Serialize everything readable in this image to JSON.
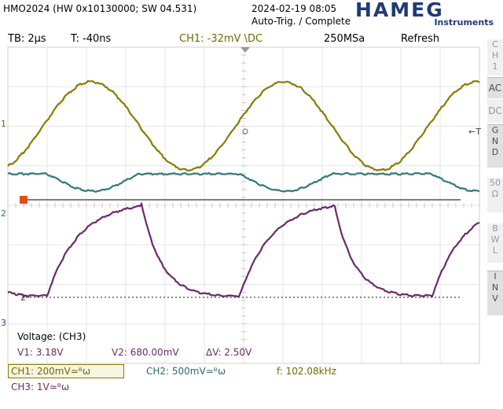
{
  "header": {
    "model": "HMO2024 (HW 0x10130000; SW 04.531)",
    "datetime": "2024-02-19 08:05",
    "trigger_status": "Auto-Trig. / Complete",
    "logo_text": "HAMEG",
    "logo_sub": "Instruments"
  },
  "status_bar": {
    "timebase": "TB: 2µs",
    "trigger_time": "T: -40ns",
    "ch1_trigger": "CH1: -32mV \\DC",
    "sample_rate": "250MSa",
    "mode": "Refresh"
  },
  "right_panel": {
    "ch_label": [
      "C",
      "H",
      "1"
    ],
    "ac": "AC",
    "dc": "DC",
    "gnd": [
      "G",
      "N",
      "D"
    ],
    "fifty": [
      "50",
      "Ω"
    ],
    "bwl": [
      "B",
      "W",
      "L"
    ],
    "inv": [
      "I",
      "N",
      "V"
    ]
  },
  "markers": {
    "ch1": "1",
    "ch2": "2",
    "ch3": "3",
    "trigger": "←T",
    "ch2_offset": "2",
    "trigger_level": "1"
  },
  "cursor": {
    "title": "Voltage: (CH3)",
    "v1": "V1: 3.18V",
    "v2": "V2: 680.00mV",
    "dv": "ΔV: 2.50V"
  },
  "channels": {
    "ch1": "CH1: 200mV≃ᴮω",
    "ch2": "CH2: 500mV≃ᴮω",
    "ch3": "CH3: 1V≃ᴮω",
    "frequency": "f: 102.08kHz"
  },
  "colors": {
    "ch1": "#8a7a00",
    "ch2": "#2f7a7a",
    "ch3": "#6a2a6a",
    "logo": "#1f3a78"
  }
}
